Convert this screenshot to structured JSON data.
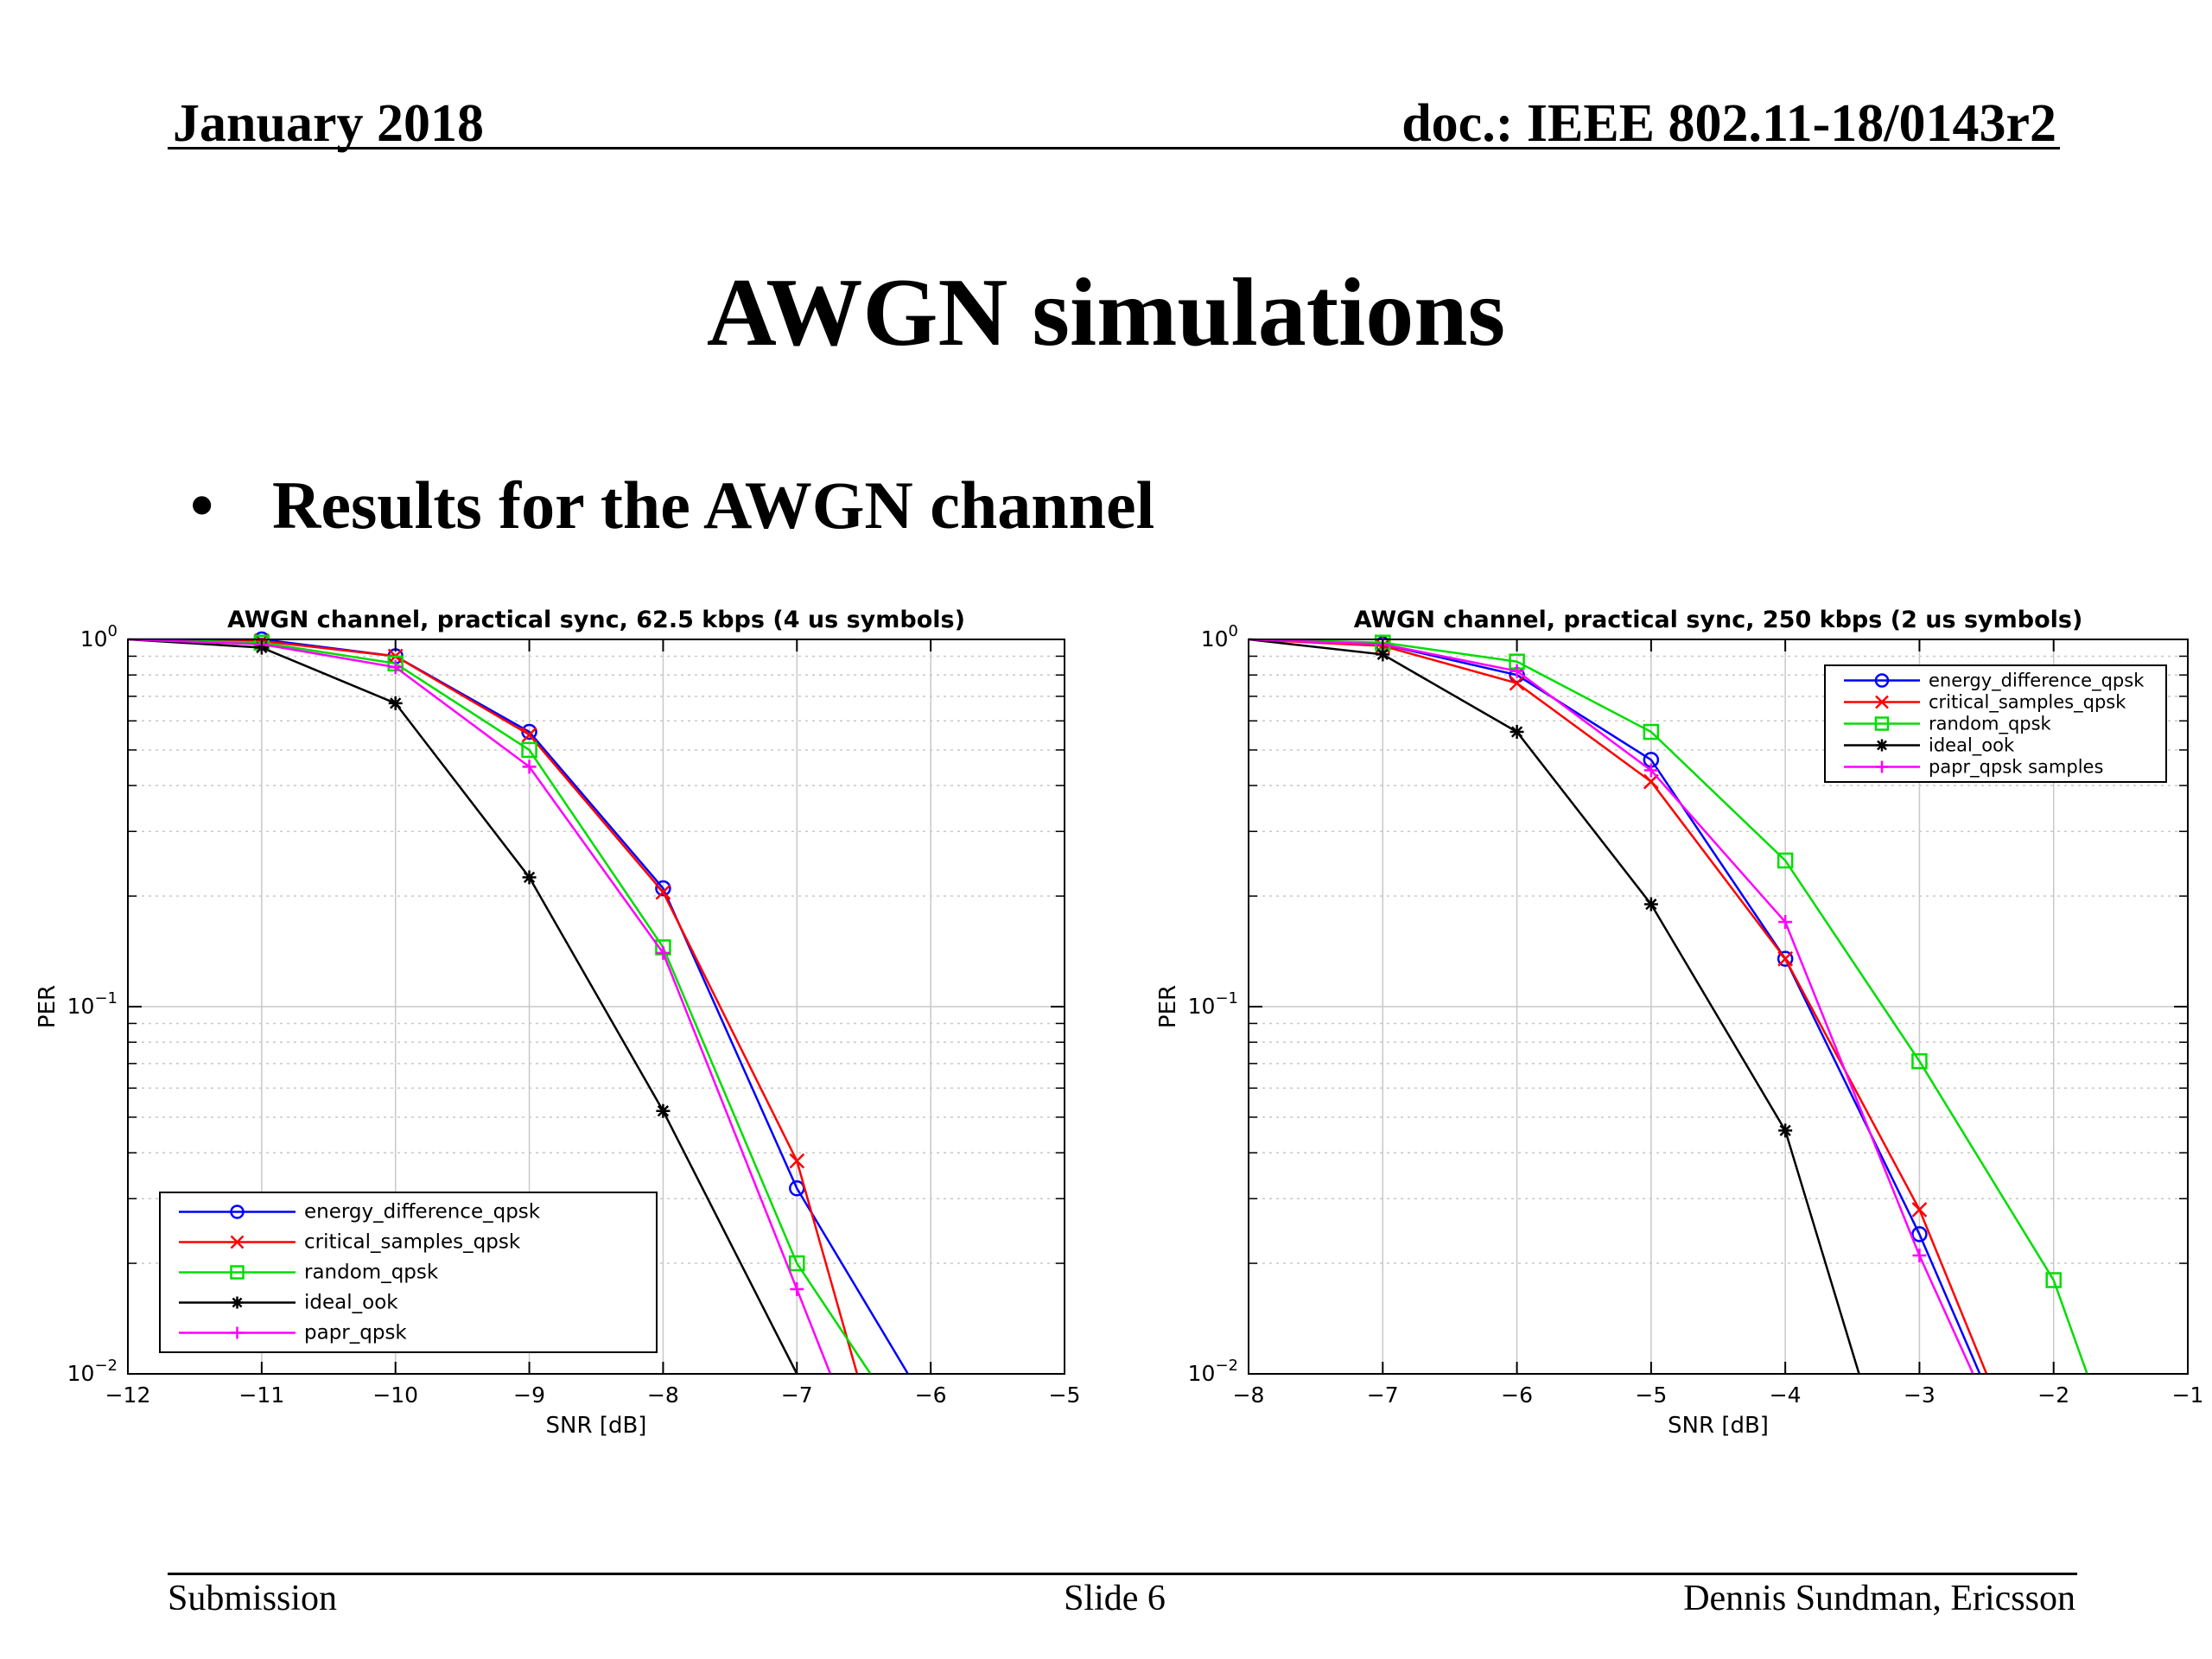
{
  "header": {
    "left": "January 2018",
    "right": "doc.: IEEE 802.11-18/0143r2"
  },
  "slide": {
    "title": "AWGN simulations",
    "bullet": "Results for the AWGN channel"
  },
  "footer": {
    "left": "Submission",
    "center": "Slide 6",
    "right": "Dennis Sundman, Ericsson"
  },
  "colors": {
    "energy_difference": "#0000ff",
    "critical_samples": "#ff0000",
    "random": "#00dd00",
    "ideal_ook": "#000000",
    "papr": "#ff00ff",
    "grid": "#c8c8c8"
  },
  "chart_data": [
    {
      "type": "line",
      "title": "AWGN channel, practical sync, 62.5 kbps (4 us symbols)",
      "xlabel": "SNR [dB]",
      "ylabel": "PER",
      "xlim": [
        -12,
        -5
      ],
      "ylim": [
        0.01,
        1
      ],
      "yscale": "log",
      "grid": true,
      "xticks": [
        "-12",
        "-11",
        "-10",
        "-9",
        "-8",
        "-7",
        "-6",
        "-5"
      ],
      "legend_position": "bottom-left",
      "series": [
        {
          "name": "energy_difference_qpsk",
          "color": "#0000ff",
          "marker": "circle",
          "x": [
            -12,
            -11,
            -10,
            -9,
            -8,
            -7,
            -6.17
          ],
          "y": [
            1,
            1,
            0.9,
            0.56,
            0.21,
            0.032,
            0.01
          ]
        },
        {
          "name": "critical_samples_qpsk",
          "color": "#ff0000",
          "marker": "x",
          "x": [
            -12,
            -11,
            -10,
            -9,
            -8,
            -7,
            -6.55
          ],
          "y": [
            1,
            0.99,
            0.9,
            0.55,
            0.205,
            0.038,
            0.01
          ]
        },
        {
          "name": "random_qpsk",
          "color": "#00dd00",
          "marker": "square",
          "x": [
            -12,
            -11,
            -10,
            -9,
            -8,
            -7,
            -6.45
          ],
          "y": [
            1,
            0.98,
            0.86,
            0.5,
            0.145,
            0.02,
            0.01
          ]
        },
        {
          "name": "ideal_ook",
          "color": "#000000",
          "marker": "star",
          "x": [
            -12,
            -11,
            -10,
            -9,
            -8,
            -7
          ],
          "y": [
            1,
            0.95,
            0.67,
            0.225,
            0.052,
            0.01
          ]
        },
        {
          "name": "papr_qpsk",
          "color": "#ff00ff",
          "marker": "plus",
          "x": [
            -12,
            -11,
            -10,
            -9,
            -8,
            -7,
            -6.75
          ],
          "y": [
            1,
            0.97,
            0.84,
            0.45,
            0.14,
            0.017,
            0.01
          ]
        }
      ]
    },
    {
      "type": "line",
      "title": "AWGN channel, practical sync, 250 kbps (2 us symbols)",
      "xlabel": "SNR [dB]",
      "ylabel": "PER",
      "xlim": [
        -8,
        -1
      ],
      "ylim": [
        0.01,
        1
      ],
      "yscale": "log",
      "grid": true,
      "xticks": [
        "-8",
        "-7",
        "-6",
        "-5",
        "-4",
        "-3",
        "-2",
        "-1"
      ],
      "legend_position": "top-right",
      "series": [
        {
          "name": "energy_difference_qpsk",
          "color": "#0000ff",
          "marker": "circle",
          "x": [
            -8,
            -7,
            -6,
            -5,
            -4,
            -3,
            -2.55
          ],
          "y": [
            1,
            0.97,
            0.8,
            0.47,
            0.135,
            0.024,
            0.01
          ]
        },
        {
          "name": "critical_samples_qpsk",
          "color": "#ff0000",
          "marker": "x",
          "x": [
            -8,
            -7,
            -6,
            -5,
            -4,
            -3,
            -2.5
          ],
          "y": [
            1,
            0.96,
            0.76,
            0.41,
            0.135,
            0.028,
            0.01
          ]
        },
        {
          "name": "random_qpsk",
          "color": "#00dd00",
          "marker": "square",
          "x": [
            -8,
            -7,
            -6,
            -5,
            -4,
            -3,
            -2,
            -1.75
          ],
          "y": [
            1,
            0.98,
            0.87,
            0.56,
            0.25,
            0.071,
            0.018,
            0.01
          ]
        },
        {
          "name": "ideal_ook",
          "color": "#000000",
          "marker": "star",
          "x": [
            -8,
            -7,
            -6,
            -5,
            -4,
            -3.45
          ],
          "y": [
            1,
            0.91,
            0.56,
            0.19,
            0.046,
            0.01
          ]
        },
        {
          "name": "papr_qpsk samples",
          "color": "#ff00ff",
          "marker": "plus",
          "x": [
            -8,
            -7,
            -6,
            -5,
            -4,
            -3,
            -2.6
          ],
          "y": [
            1,
            0.97,
            0.82,
            0.44,
            0.17,
            0.021,
            0.01
          ]
        }
      ]
    }
  ]
}
